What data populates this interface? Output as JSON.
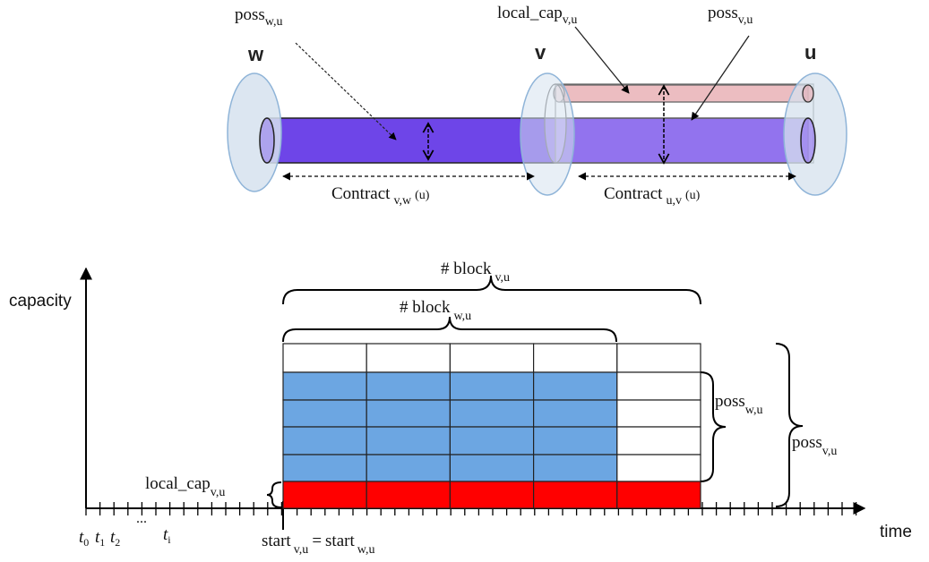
{
  "pipes": {
    "node_w": "w",
    "node_v": "v",
    "node_u": "u",
    "poss_wu": {
      "base": "poss",
      "sub": "w,u"
    },
    "local_cap_vu": {
      "base": "local_cap",
      "sub": "v,u"
    },
    "poss_vu": {
      "base": "poss",
      "sub": "v,u"
    },
    "contract_vw": {
      "base": "Contract",
      "sub": "v,w",
      "tail": "(u)"
    },
    "contract_uv": {
      "base": "Contract",
      "sub": "u,v",
      "tail": "(u)"
    }
  },
  "timeline": {
    "y_axis_label": "capacity",
    "x_axis_label": "time",
    "block_vu": {
      "base": "# block",
      "sub": "v,u"
    },
    "block_wu": {
      "base": "# block",
      "sub": "w,u"
    },
    "poss_wu": {
      "base": "poss",
      "sub": "w,u"
    },
    "poss_vu": {
      "base": "poss",
      "sub": "v,u"
    },
    "local_cap": {
      "base": "local_cap",
      "sub": "v,u"
    },
    "start_label": {
      "base1": "start",
      "sub1": "v,u",
      "eq": "=",
      "base2": "start",
      "sub2": "w,u"
    },
    "ticks": {
      "t0": "t",
      "t0_sub": "0",
      "t1": "t",
      "t1_sub": "1",
      "t2": "t",
      "t2_sub": "2",
      "ellipsis": "...",
      "ti": "t",
      "ti_sub": "i"
    }
  },
  "colors": {
    "purple_pipe": "#6e45e8",
    "pink_pipe": "#e6a7ad",
    "node_fill": "#d6e2ee",
    "node_stroke": "#8fb4d8",
    "blue_block": "#6ca6e2",
    "red_block": "#ff0000"
  }
}
